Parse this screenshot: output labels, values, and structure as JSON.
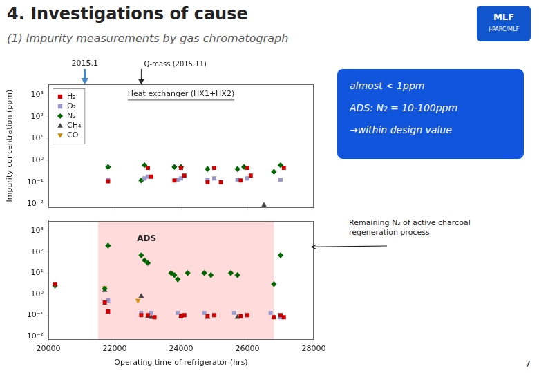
{
  "chart_data": [
    {
      "type": "scatter",
      "title": "4. Investigations of cause",
      "subtitle": "(1) Impurity measurements by gas chromatograph",
      "ylabel": "Impurity concentration (ppm)",
      "xlim": [
        20000,
        28000
      ],
      "xticks": [
        20000,
        22000,
        24000,
        26000,
        28000
      ],
      "ylim": [
        0.007,
        3000
      ],
      "yticks": [
        {
          "value": 0.01,
          "label": "10⁻²"
        },
        {
          "value": 0.1,
          "label": "10⁻¹"
        },
        {
          "value": 1,
          "label": "10⁰"
        },
        {
          "value": 10,
          "label": "10¹"
        },
        {
          "value": 100,
          "label": "10²"
        },
        {
          "value": 1000,
          "label": "10³"
        }
      ],
      "log": "y",
      "grid": false,
      "legend": "upper left",
      "tick_labels": "y",
      "series": [
        {
          "name": "H₂",
          "color": "#CC0000",
          "marker": "square",
          "values": [
            [
              21800,
              0.11
            ],
            [
              23000,
              0.45
            ],
            [
              23100,
              0.18
            ],
            [
              23800,
              0.12
            ],
            [
              24000,
              0.45
            ],
            [
              24100,
              0.2
            ],
            [
              24800,
              0.1
            ],
            [
              25000,
              0.45
            ],
            [
              25200,
              0.1
            ],
            [
              25800,
              0.12
            ],
            [
              26000,
              0.45
            ],
            [
              26100,
              0.2
            ],
            [
              27100,
              0.45
            ]
          ]
        },
        {
          "name": "O₂",
          "color": "#9999CC",
          "marker": "square",
          "values": [
            [
              21800,
              0.13
            ],
            [
              22900,
              0.15
            ],
            [
              23000,
              0.18
            ],
            [
              23900,
              0.13
            ],
            [
              24000,
              0.15
            ],
            [
              24800,
              0.13
            ],
            [
              25000,
              0.15
            ],
            [
              25700,
              0.13
            ],
            [
              26000,
              0.15
            ],
            [
              27000,
              0.13
            ]
          ]
        },
        {
          "name": "N₂",
          "color": "#006600",
          "marker": "diamond",
          "values": [
            [
              21800,
              0.5
            ],
            [
              22800,
              0.12
            ],
            [
              22900,
              0.6
            ],
            [
              23800,
              0.5
            ],
            [
              24000,
              0.5
            ],
            [
              24800,
              0.4
            ],
            [
              25700,
              0.4
            ],
            [
              25900,
              0.5
            ],
            [
              26800,
              0.3
            ],
            [
              27000,
              0.6
            ]
          ]
        },
        {
          "name": "CH₄",
          "color": "#444444",
          "marker": "triangle-up",
          "values": [
            [
              26500,
              0.009
            ]
          ]
        },
        {
          "name": "CO",
          "color": "#CC8800",
          "marker": "triangle-down",
          "values": []
        }
      ],
      "annotations": [
        {
          "text": "Heat exchanger (HX1+HX2)"
        },
        {
          "text": "2015.1",
          "x": 21100,
          "color": "#4488CC"
        },
        {
          "text": "Q-mass (2015.11)",
          "x": 22800
        },
        {
          "text": "MLF",
          "color": "#1155CC"
        },
        {
          "text": "J-PARC/MLF"
        },
        {
          "text": "almost < 1ppm",
          "color": "#1155DD"
        },
        {
          "text": "ADS: N₂ = 10-100ppm"
        },
        {
          "text": "→within design value"
        },
        {
          "text": "7"
        }
      ]
    },
    {
      "type": "scatter",
      "xlabel": "Operating time of refrigerator (hrs)",
      "xlim": [
        20000,
        28000
      ],
      "xticks": [
        20000,
        22000,
        24000,
        26000,
        28000
      ],
      "ylim": [
        0.007,
        3000
      ],
      "yticks": [
        {
          "value": 0.01,
          "label": "10⁻²"
        },
        {
          "value": 0.1,
          "label": "10⁻¹"
        },
        {
          "value": 1,
          "label": "10⁰"
        },
        {
          "value": 10,
          "label": "10¹"
        },
        {
          "value": 100,
          "label": "10²"
        },
        {
          "value": 1000,
          "label": "10³"
        }
      ],
      "log": "y",
      "grid": false,
      "series": [
        {
          "name": "H₂",
          "color": "#CC0000",
          "marker": "square",
          "values": [
            [
              20200,
              3.0
            ],
            [
              21700,
              0.4
            ],
            [
              21800,
              0.15
            ],
            [
              22800,
              0.1
            ],
            [
              23000,
              0.1
            ],
            [
              23200,
              0.08
            ],
            [
              24000,
              0.09
            ],
            [
              24100,
              0.1
            ],
            [
              24800,
              0.09
            ],
            [
              25000,
              0.1
            ],
            [
              25800,
              0.09
            ],
            [
              26000,
              0.1
            ],
            [
              26800,
              0.08
            ],
            [
              27000,
              0.1
            ],
            [
              27100,
              0.08
            ]
          ]
        },
        {
          "name": "O₂",
          "color": "#9999CC",
          "marker": "square",
          "values": [
            [
              20200,
              3.0
            ],
            [
              21800,
              0.5
            ],
            [
              22800,
              0.13
            ],
            [
              23100,
              0.13
            ],
            [
              23900,
              0.13
            ],
            [
              24700,
              0.13
            ],
            [
              25600,
              0.13
            ],
            [
              26700,
              0.13
            ],
            [
              27000,
              0.08
            ]
          ]
        },
        {
          "name": "N₂",
          "color": "#006600",
          "marker": "diamond",
          "values": [
            [
              20200,
              2.5
            ],
            [
              21700,
              1.8
            ],
            [
              21800,
              200
            ],
            [
              22800,
              70
            ],
            [
              22900,
              40
            ],
            [
              23000,
              30
            ],
            [
              23700,
              10
            ],
            [
              23800,
              8
            ],
            [
              23900,
              5
            ],
            [
              24200,
              10
            ],
            [
              24700,
              10
            ],
            [
              24900,
              8
            ],
            [
              25500,
              10
            ],
            [
              25700,
              8
            ],
            [
              26800,
              3
            ],
            [
              27000,
              70
            ]
          ]
        },
        {
          "name": "CH₄",
          "color": "#444444",
          "marker": "triangle-up",
          "values": [
            [
              21700,
              1.5
            ],
            [
              22800,
              0.8
            ],
            [
              23000,
              0.09
            ],
            [
              23100,
              0.08
            ],
            [
              24000,
              0.09
            ],
            [
              24800,
              0.08
            ],
            [
              25700,
              0.08
            ],
            [
              26800,
              0.08
            ],
            [
              27000,
              0.08
            ]
          ]
        },
        {
          "name": "CO",
          "color": "#CC8800",
          "marker": "triangle-down",
          "values": [
            [
              21700,
              2.0
            ],
            [
              22700,
              0.5
            ]
          ]
        }
      ],
      "annotations": [
        {
          "text": "ADS",
          "x": [
            21500,
            26800
          ],
          "color": "#FFCCCC"
        },
        {
          "text": "Remaining N₂ of active charcoal\nregeneration process"
        }
      ]
    }
  ]
}
